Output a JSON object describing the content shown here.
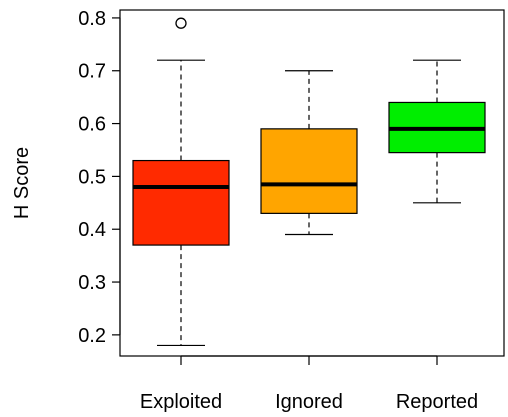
{
  "chart_data": {
    "type": "boxplot",
    "title": "",
    "xlabel": "",
    "ylabel": "H Score",
    "ylim": [
      0.16,
      0.815
    ],
    "yticks": [
      "0.2",
      "0.3",
      "0.4",
      "0.5",
      "0.6",
      "0.7",
      "0.8"
    ],
    "grid": false,
    "legend": "none",
    "categories": [
      "Exploited",
      "Ignored",
      "Reported"
    ],
    "series": [
      {
        "category": "Exploited",
        "color": "#ff2a00",
        "whisker_low": 0.18,
        "q1": 0.37,
        "median": 0.48,
        "q3": 0.53,
        "whisker_high": 0.72,
        "outliers": [
          0.79
        ]
      },
      {
        "category": "Ignored",
        "color": "#ffa500",
        "whisker_low": 0.39,
        "q1": 0.43,
        "median": 0.485,
        "q3": 0.59,
        "whisker_high": 0.7,
        "outliers": []
      },
      {
        "category": "Reported",
        "color": "#00ee00",
        "whisker_low": 0.45,
        "q1": 0.545,
        "median": 0.59,
        "q3": 0.64,
        "whisker_high": 0.72,
        "outliers": []
      }
    ]
  }
}
